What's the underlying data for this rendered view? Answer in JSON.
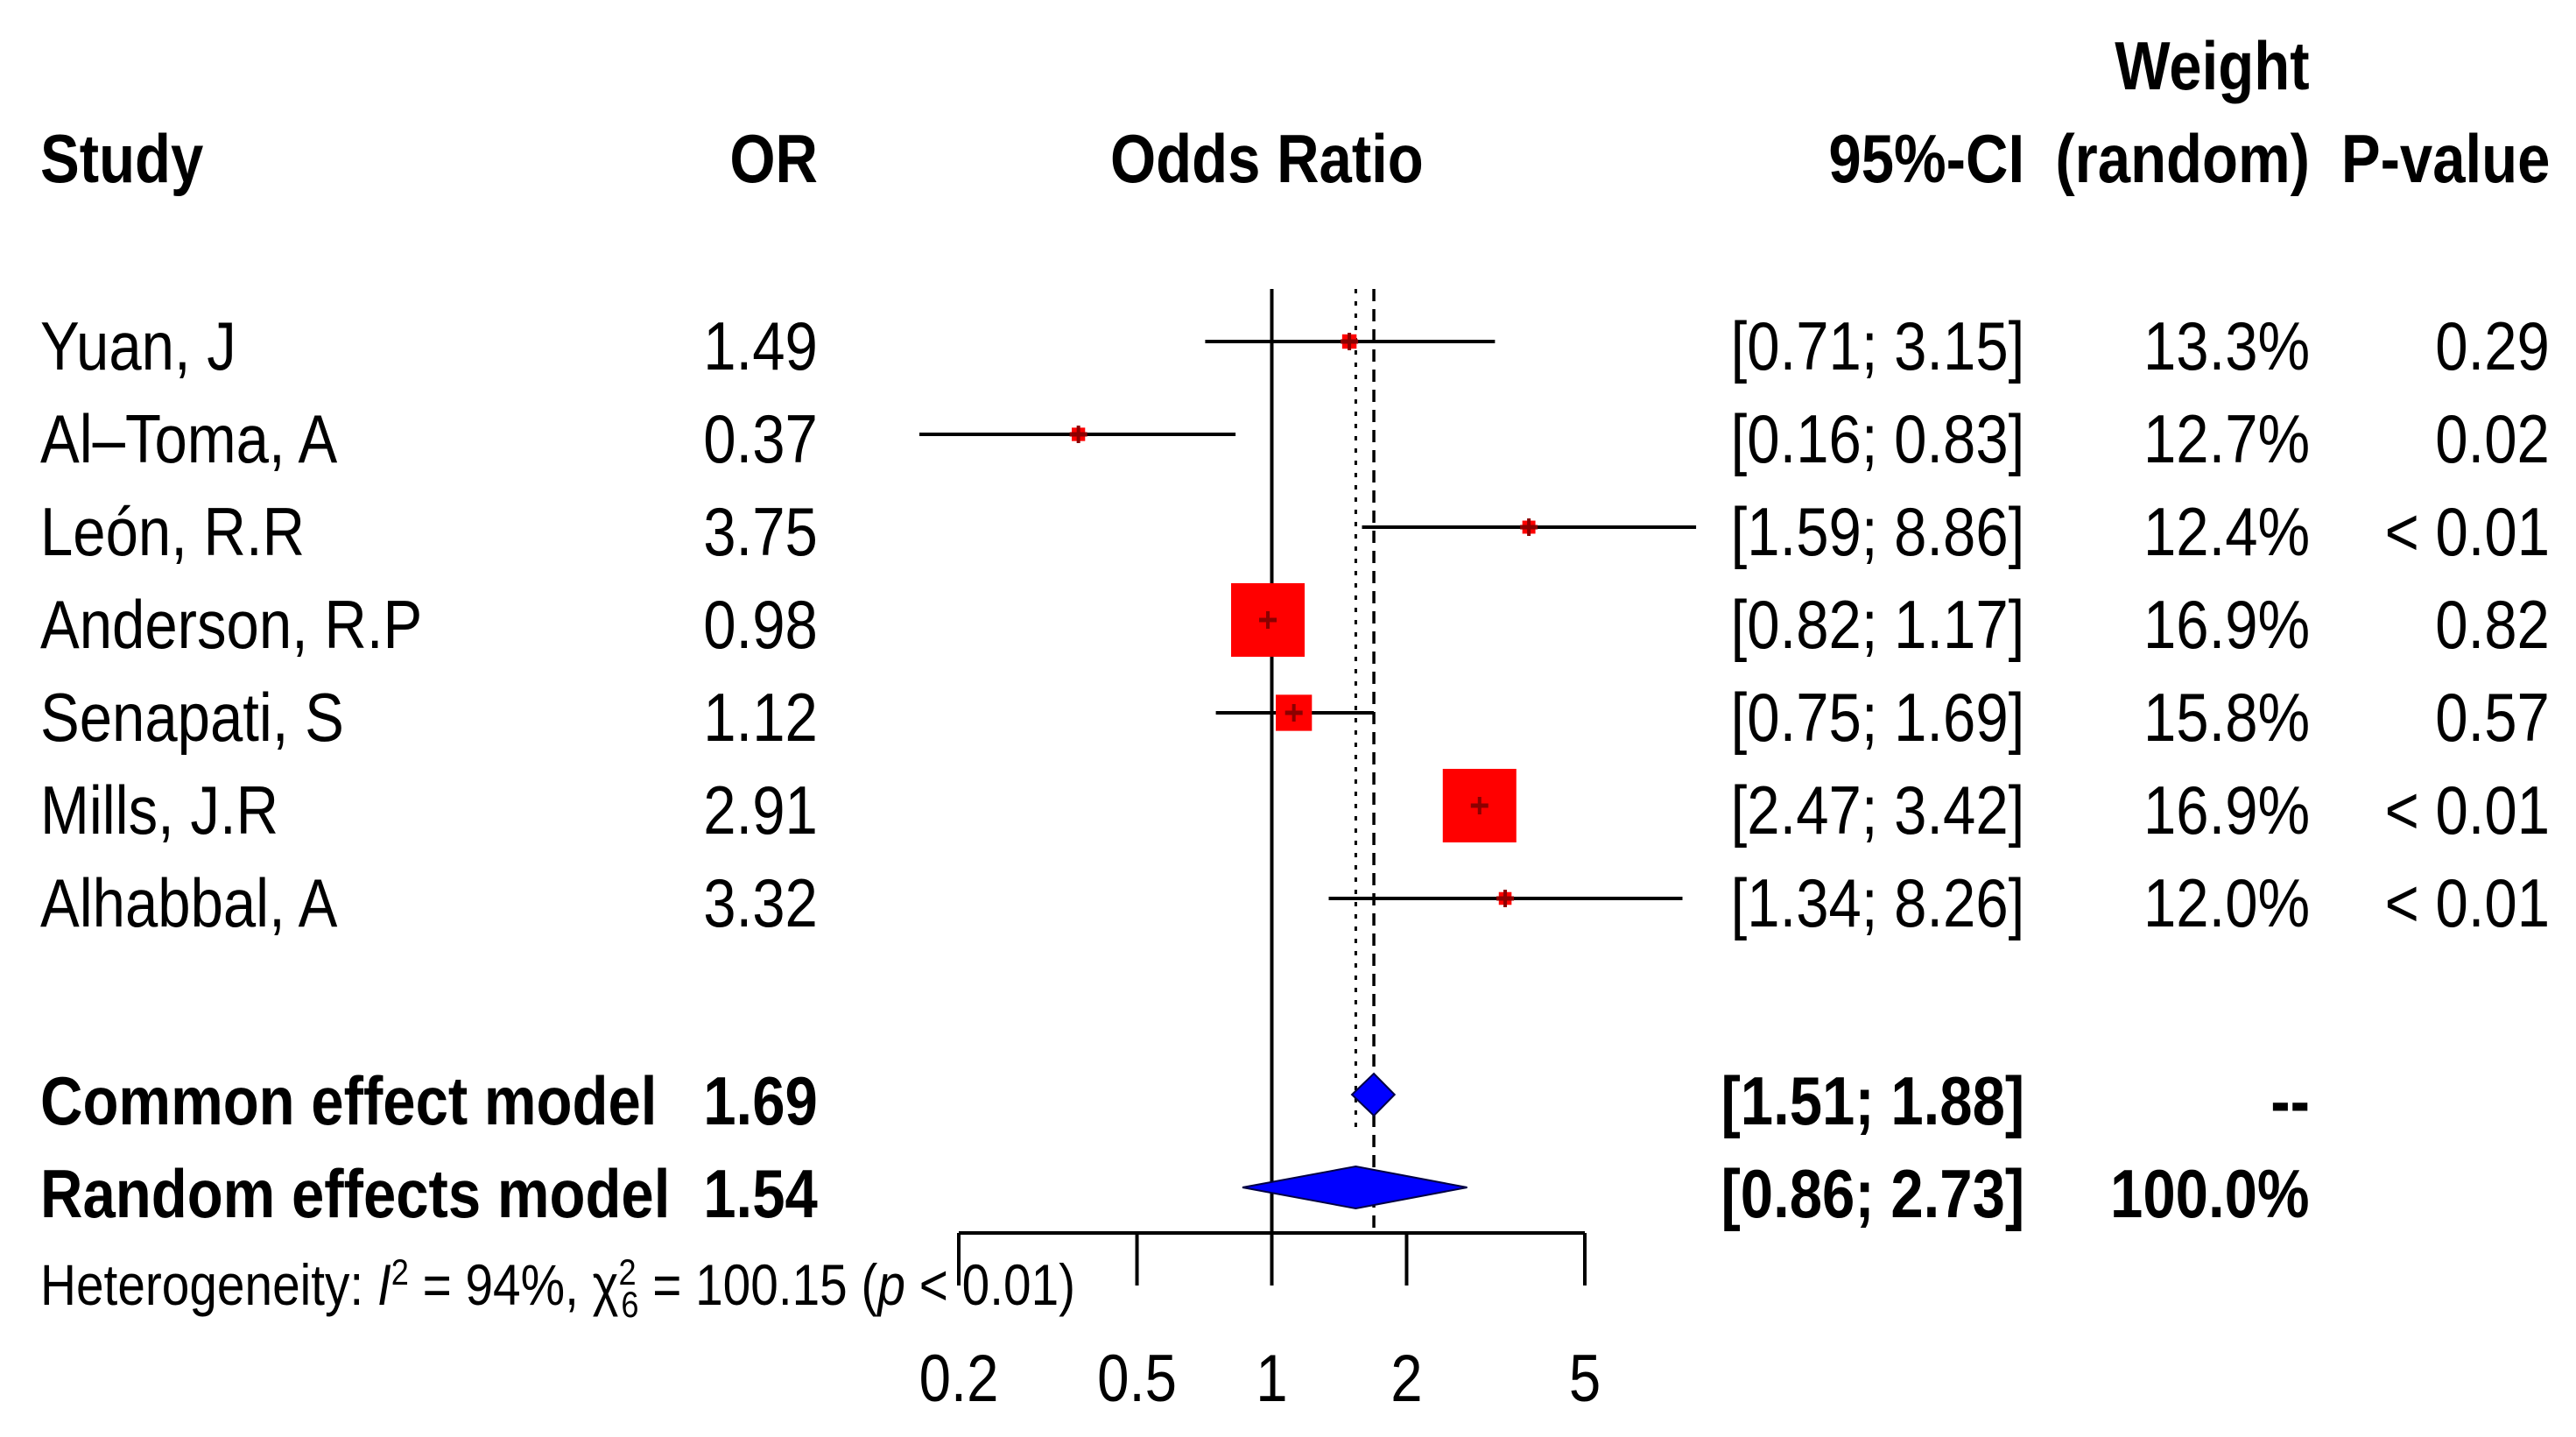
{
  "headers": {
    "study": "Study",
    "or": "OR",
    "odds_ratio": "Odds Ratio",
    "ci": "95%-CI",
    "weight_top": "Weight",
    "weight_bottom": "(random)",
    "pvalue": "P-value"
  },
  "studies": [
    {
      "name": "Yuan, J",
      "or": "1.49",
      "ci": "[0.71; 3.15]",
      "weight": "13.3%",
      "p": "0.29"
    },
    {
      "name": "Al–Toma, A",
      "or": "0.37",
      "ci": "[0.16; 0.83]",
      "weight": "12.7%",
      "p": "0.02"
    },
    {
      "name": "León, R.R",
      "or": "3.75",
      "ci": "[1.59; 8.86]",
      "weight": "12.4%",
      "p": "< 0.01"
    },
    {
      "name": "Anderson, R.P",
      "or": "0.98",
      "ci": "[0.82; 1.17]",
      "weight": "16.9%",
      "p": "0.82"
    },
    {
      "name": "Senapati, S",
      "or": "1.12",
      "ci": "[0.75; 1.69]",
      "weight": "15.8%",
      "p": "0.57"
    },
    {
      "name": "Mills, J.R",
      "or": "2.91",
      "ci": "[2.47; 3.42]",
      "weight": "16.9%",
      "p": "< 0.01"
    },
    {
      "name": "Alhabbal, A",
      "or": "3.32",
      "ci": "[1.34; 8.26]",
      "weight": "12.0%",
      "p": "< 0.01"
    }
  ],
  "models": [
    {
      "name": "Common effect model",
      "or": "1.69",
      "ci": "[1.51; 1.88]",
      "weight": "--"
    },
    {
      "name": "Random effects model",
      "or": "1.54",
      "ci": "[0.86; 2.73]",
      "weight": "100.0%"
    }
  ],
  "heterogeneity": {
    "prefix": "Heterogeneity: ",
    "i": "I",
    "i_sup": "2",
    "i_value": " = 94%, ",
    "chi": "χ",
    "chi_sup": "2",
    "chi_sub": "6",
    "chi_value": " = 100.15 (",
    "p": "p",
    "p_value": " < 0.01)"
  },
  "colors": {
    "study_box": "#ff0000",
    "study_point": "#8b0000",
    "diamond": "#0000ff",
    "line": "#000000"
  },
  "chart_data": {
    "type": "forest",
    "title": "Odds Ratio",
    "scale": "log",
    "xlim": [
      0.2,
      5
    ],
    "x_ticks": [
      0.2,
      0.5,
      1,
      2,
      5
    ],
    "null_value": 1,
    "common_line": 1.69,
    "random_line": 1.54,
    "studies": [
      {
        "name": "Yuan, J",
        "or": 1.49,
        "lower": 0.71,
        "upper": 3.15,
        "weight": 13.3
      },
      {
        "name": "Al–Toma, A",
        "or": 0.37,
        "lower": 0.16,
        "upper": 0.83,
        "weight": 12.7
      },
      {
        "name": "León, R.R",
        "or": 3.75,
        "lower": 1.59,
        "upper": 8.86,
        "weight": 12.4
      },
      {
        "name": "Anderson, R.P",
        "or": 0.98,
        "lower": 0.82,
        "upper": 1.17,
        "weight": 16.9
      },
      {
        "name": "Senapati, S",
        "or": 1.12,
        "lower": 0.75,
        "upper": 1.69,
        "weight": 15.8
      },
      {
        "name": "Mills, J.R",
        "or": 2.91,
        "lower": 2.47,
        "upper": 3.42,
        "weight": 16.9
      },
      {
        "name": "Alhabbal, A",
        "or": 3.32,
        "lower": 1.34,
        "upper": 8.26,
        "weight": 12.0
      }
    ],
    "common_effect": {
      "or": 1.69,
      "lower": 1.51,
      "upper": 1.88
    },
    "random_effects": {
      "or": 1.54,
      "lower": 0.86,
      "upper": 2.73
    }
  }
}
